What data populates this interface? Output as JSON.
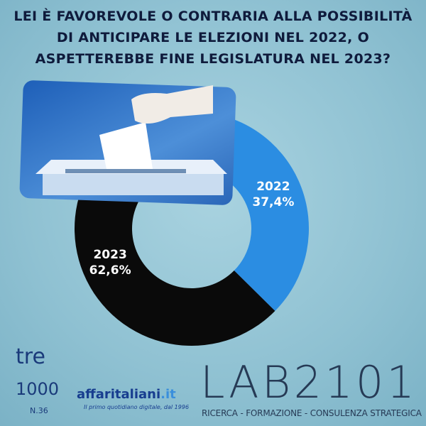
{
  "chart_data": {
    "type": "pie",
    "donut": true,
    "title": "LEI È FAVOREVOLE O CONTRARIA ALLA POSSIBILITÀ DI ANTICIPARE LE ELEZIONI NEL 2022, O ASPETTEREBBE FINE LEGISLATURA NEL 2023?",
    "categories": [
      "2022",
      "2023"
    ],
    "values": [
      37.4,
      62.6
    ],
    "value_labels": [
      "37,4%",
      "62,6%"
    ],
    "colors": [
      "#2b8de2",
      "#0a0a0a"
    ]
  },
  "branding": {
    "tre": "tre",
    "mille": "1000",
    "issue": "N.36",
    "affaritaliani": "affaritaliani",
    "affaritaliani_tld": ".it",
    "affaritaliani_tagline": "Il primo quotidiano digitale, dal 1996",
    "lab": "LAB2101",
    "lab_tagline": "RICERCA - FORMAZIONE - CONSULENZA STRATEGICA"
  }
}
